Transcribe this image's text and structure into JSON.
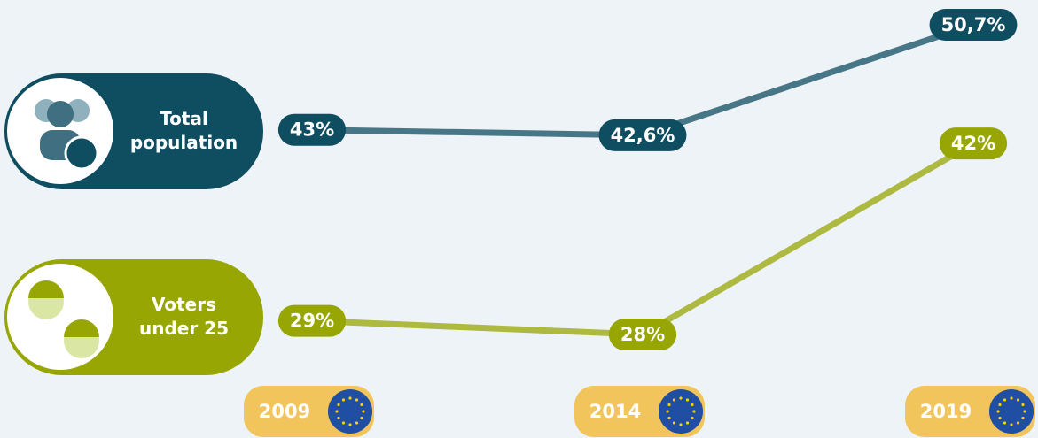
{
  "chart_data": {
    "type": "line",
    "categories": [
      "2009",
      "2014",
      "2019"
    ],
    "series": [
      {
        "name": "Total population",
        "color": "#0f4d60",
        "values": [
          43,
          42.6,
          50.7
        ],
        "value_labels": [
          "43%",
          "42,6%",
          "50,7%"
        ]
      },
      {
        "name": "Voters under 25",
        "color": "#97a603",
        "values": [
          29,
          28,
          42
        ],
        "value_labels": [
          "29%",
          "28%",
          "42%"
        ]
      }
    ]
  }
}
